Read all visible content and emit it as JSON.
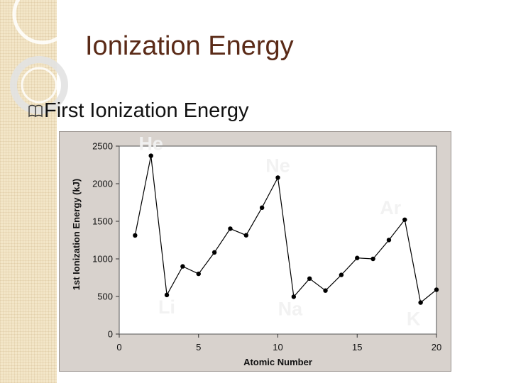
{
  "slide": {
    "title": "Ionization Energy",
    "bullet": "First Ionization Energy"
  },
  "colors": {
    "title": "#5a2a17",
    "plot_bg": "#d8d2cd",
    "line": "#000000",
    "element_label": "#f2f2f2",
    "side_strip": "#f3e6c8"
  },
  "chart_data": {
    "type": "line",
    "xlabel": "Atomic Number",
    "ylabel": "1st Ionization Energy (kJ)",
    "xlim": [
      0,
      20
    ],
    "ylim": [
      0,
      2500
    ],
    "xticks": [
      0,
      5,
      10,
      15,
      20
    ],
    "yticks": [
      0,
      500,
      1000,
      1500,
      2000,
      2500
    ],
    "grid": false,
    "x": [
      1,
      2,
      3,
      4,
      5,
      6,
      7,
      8,
      9,
      10,
      11,
      12,
      13,
      14,
      15,
      16,
      17,
      18,
      19,
      20
    ],
    "y": [
      1312,
      2372,
      520,
      900,
      801,
      1086,
      1402,
      1314,
      1681,
      2081,
      496,
      738,
      578,
      787,
      1012,
      1000,
      1251,
      1521,
      419,
      590
    ],
    "annotations": [
      {
        "text": "He",
        "x": 2,
        "y": 2372
      },
      {
        "text": "Ne",
        "x": 10,
        "y": 2081
      },
      {
        "text": "Ar",
        "x": 18,
        "y": 1521
      },
      {
        "text": "Li",
        "x": 3,
        "y": 520
      },
      {
        "text": "Na",
        "x": 11,
        "y": 496
      },
      {
        "text": "K",
        "x": 19,
        "y": 419
      }
    ]
  }
}
